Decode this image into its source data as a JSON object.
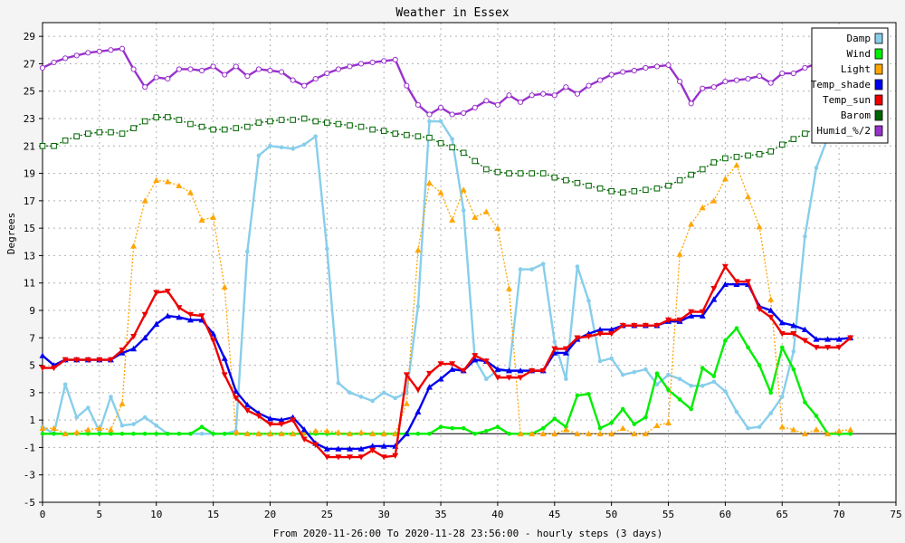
{
  "chart_data": {
    "type": "line",
    "title": "Weather in Essex",
    "ylabel": "Degrees",
    "xlabel": "From 2020-11-26:00 To 2020-11-28 23:56:00 - hourly steps (3 days)",
    "xlim": [
      0,
      75
    ],
    "ylim": [
      -5,
      30
    ],
    "x_ticks": [
      0,
      5,
      10,
      15,
      20,
      25,
      30,
      35,
      40,
      45,
      50,
      55,
      60,
      65,
      70,
      75
    ],
    "y_ticks": [
      -5,
      -3,
      -1,
      1,
      3,
      5,
      7,
      9,
      11,
      13,
      15,
      17,
      19,
      21,
      23,
      25,
      27,
      29
    ],
    "grid": true,
    "legend_position": "top-right",
    "zero_line": 0,
    "series": [
      {
        "name": "Damp",
        "color": "#87ceeb",
        "line": "solid",
        "marker": "dot",
        "values": [
          0.5,
          0,
          3.6,
          1.2,
          1.9,
          0.2,
          2.7,
          0.6,
          0.7,
          1.2,
          0.6,
          0,
          0,
          0,
          0,
          0,
          0,
          0.2,
          13.3,
          20.3,
          21,
          20.9,
          20.8,
          21.1,
          21.7,
          13.5,
          3.7,
          3,
          2.7,
          2.4,
          3,
          2.6,
          3,
          9.3,
          22.8,
          22.8,
          21.5,
          16.3,
          5.4,
          4,
          4.6,
          4.6,
          12,
          12,
          12.4,
          6.7,
          4,
          12.2,
          9.7,
          5.3,
          5.5,
          4.3,
          4.5,
          4.7,
          3.6,
          4.3,
          4,
          3.5,
          3.5,
          3.8,
          3.1,
          1.6,
          0.4,
          0.5,
          1.5,
          2.7,
          6,
          14.4,
          19.4,
          21.6,
          null,
          null
        ]
      },
      {
        "name": "Wind",
        "color": "#00ee00",
        "line": "solid",
        "marker": "dot",
        "values": [
          0,
          0,
          0,
          0,
          0,
          0,
          0,
          0,
          0,
          0,
          0,
          0,
          0,
          0,
          0.5,
          0,
          0,
          0,
          0,
          0,
          0,
          0,
          0,
          0,
          0,
          0,
          0,
          0,
          0,
          0,
          0,
          0,
          0,
          0,
          0,
          0.5,
          0.4,
          0.4,
          0,
          0.2,
          0.5,
          0,
          0,
          0,
          0.4,
          1.1,
          0.5,
          2.8,
          2.9,
          0.4,
          0.8,
          1.8,
          0.7,
          1.2,
          4.4,
          3.2,
          2.5,
          1.8,
          4.8,
          4.2,
          6.8,
          7.7,
          6.3,
          5,
          3,
          6.3,
          4.7,
          2.3,
          1.3,
          0,
          0,
          0
        ]
      },
      {
        "name": "Light",
        "color": "#ffa500",
        "line": "dotted",
        "marker": "triangle",
        "values": [
          0.4,
          0.4,
          0,
          0.1,
          0.3,
          0.4,
          0.3,
          2.2,
          13.7,
          17,
          18.5,
          18.4,
          18.1,
          17.6,
          15.6,
          15.8,
          10.7,
          0.1,
          0,
          0,
          0,
          0,
          0,
          0.1,
          0.2,
          0.2,
          0.1,
          0,
          0.1,
          0,
          0,
          0,
          2.2,
          13.4,
          18.3,
          17.6,
          15.6,
          17.8,
          15.8,
          16.2,
          15,
          10.6,
          0,
          0,
          0,
          0,
          0.3,
          0,
          0,
          0,
          0,
          0.4,
          0,
          0,
          0.6,
          0.8,
          13.1,
          15.3,
          16.5,
          17,
          18.6,
          19.6,
          17.3,
          15.1,
          9.8,
          0.5,
          0.3,
          0,
          0.3,
          0,
          0.2,
          0.3
        ]
      },
      {
        "name": "Temp_shade",
        "color": "#0000ee",
        "line": "solid",
        "marker": "triangle",
        "values": [
          5.7,
          5,
          5.4,
          5.4,
          5.4,
          5.4,
          5.4,
          5.9,
          6.2,
          7,
          8,
          8.6,
          8.5,
          8.3,
          8.3,
          7.3,
          5.5,
          3.1,
          2.1,
          1.5,
          1.1,
          1,
          1.2,
          0.3,
          -0.7,
          -1.1,
          -1.1,
          -1.1,
          -1.1,
          -0.9,
          -0.9,
          -0.9,
          0,
          1.6,
          3.4,
          4,
          4.7,
          4.6,
          5.4,
          5.3,
          4.7,
          4.6,
          4.6,
          4.6,
          4.6,
          5.9,
          5.9,
          6.9,
          7.3,
          7.6,
          7.6,
          7.9,
          7.9,
          7.9,
          7.9,
          8.2,
          8.2,
          8.6,
          8.6,
          9.8,
          10.9,
          10.9,
          10.9,
          9.3,
          9,
          8.1,
          7.9,
          7.6,
          6.9,
          6.9,
          6.9,
          7
        ]
      },
      {
        "name": "Temp_sun",
        "color": "#ee0000",
        "line": "solid",
        "marker": "triangle-down",
        "values": [
          4.8,
          4.8,
          5.4,
          5.4,
          5.4,
          5.4,
          5.4,
          6.1,
          7.1,
          8.7,
          10.3,
          10.4,
          9.2,
          8.7,
          8.6,
          6.8,
          4.3,
          2.6,
          1.7,
          1.3,
          0.7,
          0.7,
          1,
          -0.4,
          -0.8,
          -1.7,
          -1.7,
          -1.7,
          -1.7,
          -1.2,
          -1.7,
          -1.6,
          4.3,
          3.2,
          4.4,
          5.1,
          5.1,
          4.6,
          5.7,
          5.3,
          4.1,
          4.1,
          4.1,
          4.6,
          4.6,
          6.2,
          6.2,
          7,
          7.1,
          7.3,
          7.3,
          7.9,
          7.9,
          7.9,
          7.9,
          8.3,
          8.3,
          8.9,
          8.9,
          10.6,
          12.2,
          11.1,
          11.1,
          9.1,
          8.5,
          7.3,
          7.3,
          6.8,
          6.3,
          6.3,
          6.3,
          7
        ]
      },
      {
        "name": "Barom",
        "color": "#006400",
        "line": "dotted",
        "marker": "square",
        "values": [
          21,
          21,
          21.4,
          21.7,
          21.9,
          22,
          22,
          21.9,
          22.3,
          22.8,
          23.1,
          23.1,
          22.9,
          22.6,
          22.4,
          22.2,
          22.2,
          22.3,
          22.4,
          22.7,
          22.8,
          22.9,
          22.9,
          23,
          22.8,
          22.7,
          22.6,
          22.5,
          22.4,
          22.2,
          22.1,
          21.9,
          21.8,
          21.7,
          21.6,
          21.2,
          20.9,
          20.5,
          19.9,
          19.3,
          19.1,
          19,
          19,
          19,
          19,
          18.7,
          18.5,
          18.3,
          18.1,
          17.9,
          17.7,
          17.6,
          17.7,
          17.8,
          17.9,
          18.1,
          18.5,
          18.9,
          19.3,
          19.8,
          20.1,
          20.2,
          20.3,
          20.4,
          20.6,
          21.1,
          21.5,
          21.9,
          22.3,
          22.8,
          23.3,
          23.8
        ]
      },
      {
        "name": "Humid_%/2",
        "color": "#9932cc",
        "line": "solid",
        "marker": "star",
        "values": [
          26.7,
          27.1,
          27.4,
          27.6,
          27.8,
          27.9,
          28,
          28.1,
          26.6,
          25.3,
          26,
          25.9,
          26.6,
          26.6,
          26.5,
          26.8,
          26.2,
          26.8,
          26.1,
          26.6,
          26.5,
          26.4,
          25.8,
          25.4,
          25.9,
          26.3,
          26.6,
          26.8,
          27,
          27.1,
          27.2,
          27.3,
          25.4,
          24,
          23.3,
          23.8,
          23.3,
          23.4,
          23.8,
          24.3,
          24,
          24.7,
          24.2,
          24.7,
          24.8,
          24.7,
          25.3,
          24.8,
          25.4,
          25.8,
          26.2,
          26.4,
          26.5,
          26.7,
          26.8,
          26.9,
          25.7,
          24.1,
          25.2,
          25.3,
          25.7,
          25.8,
          25.9,
          26.1,
          25.6,
          26.3,
          26.3,
          26.7,
          27,
          27.2,
          27.6,
          27.6
        ]
      }
    ]
  }
}
